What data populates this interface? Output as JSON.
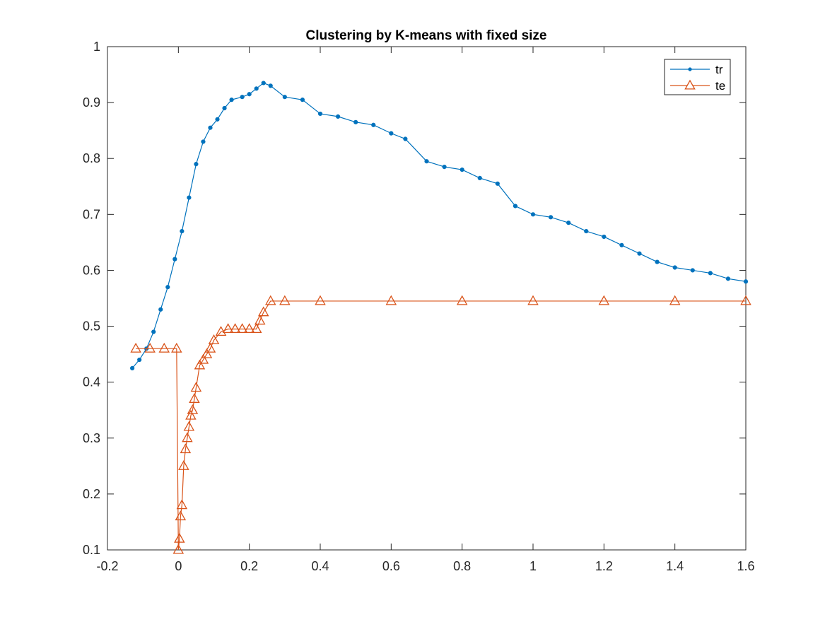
{
  "chart_data": {
    "type": "line",
    "title": "Clustering by K-means with fixed size",
    "xlabel": "",
    "ylabel": "",
    "xlim": [
      -0.2,
      1.6
    ],
    "ylim": [
      0.1,
      1
    ],
    "xticks": [
      -0.2,
      0,
      0.2,
      0.4,
      0.6,
      0.8,
      1,
      1.2,
      1.4,
      1.6
    ],
    "xtick_labels": [
      "-0.2",
      "0",
      "0.2",
      "0.4",
      "0.6",
      "0.8",
      "1",
      "1.2",
      "1.4",
      "1.6"
    ],
    "yticks": [
      0.1,
      0.2,
      0.3,
      0.4,
      0.5,
      0.6,
      0.7,
      0.8,
      0.9,
      1
    ],
    "ytick_labels": [
      "0.1",
      "0.2",
      "0.3",
      "0.4",
      "0.5",
      "0.6",
      "0.7",
      "0.8",
      "0.9",
      "1"
    ],
    "grid": false,
    "legend": "top-right",
    "series": [
      {
        "name": "tr",
        "color": "#0072BD",
        "marker": "dot",
        "x": [
          -0.13,
          -0.11,
          -0.09,
          -0.07,
          -0.05,
          -0.03,
          -0.01,
          0.01,
          0.03,
          0.05,
          0.07,
          0.09,
          0.11,
          0.13,
          0.15,
          0.18,
          0.2,
          0.22,
          0.24,
          0.26,
          0.3,
          0.35,
          0.4,
          0.45,
          0.5,
          0.55,
          0.6,
          0.64,
          0.7,
          0.75,
          0.8,
          0.85,
          0.9,
          0.95,
          1.0,
          1.05,
          1.1,
          1.15,
          1.2,
          1.25,
          1.3,
          1.35,
          1.4,
          1.45,
          1.5,
          1.55,
          1.6
        ],
        "y": [
          0.425,
          0.44,
          0.46,
          0.49,
          0.53,
          0.57,
          0.62,
          0.67,
          0.73,
          0.79,
          0.83,
          0.855,
          0.87,
          0.89,
          0.905,
          0.91,
          0.915,
          0.925,
          0.935,
          0.93,
          0.91,
          0.905,
          0.88,
          0.875,
          0.865,
          0.86,
          0.845,
          0.835,
          0.795,
          0.785,
          0.78,
          0.765,
          0.755,
          0.715,
          0.7,
          0.695,
          0.685,
          0.67,
          0.66,
          0.645,
          0.63,
          0.615,
          0.605,
          0.6,
          0.595,
          0.585,
          0.58
        ]
      },
      {
        "name": "te",
        "color": "#D95319",
        "marker": "triangle",
        "x": [
          -0.12,
          -0.08,
          -0.04,
          -0.005,
          0.0,
          0.003,
          0.006,
          0.01,
          0.015,
          0.02,
          0.025,
          0.03,
          0.035,
          0.04,
          0.045,
          0.05,
          0.06,
          0.07,
          0.08,
          0.09,
          0.1,
          0.12,
          0.14,
          0.16,
          0.18,
          0.2,
          0.22,
          0.23,
          0.24,
          0.26,
          0.3,
          0.4,
          0.6,
          0.8,
          1.0,
          1.2,
          1.4,
          1.6
        ],
        "y": [
          0.46,
          0.46,
          0.46,
          0.46,
          0.1,
          0.12,
          0.16,
          0.18,
          0.25,
          0.28,
          0.3,
          0.32,
          0.34,
          0.35,
          0.37,
          0.39,
          0.43,
          0.44,
          0.45,
          0.46,
          0.475,
          0.49,
          0.495,
          0.495,
          0.495,
          0.495,
          0.495,
          0.51,
          0.525,
          0.545,
          0.545,
          0.545,
          0.545,
          0.545,
          0.545,
          0.545,
          0.545,
          0.545
        ]
      }
    ]
  }
}
